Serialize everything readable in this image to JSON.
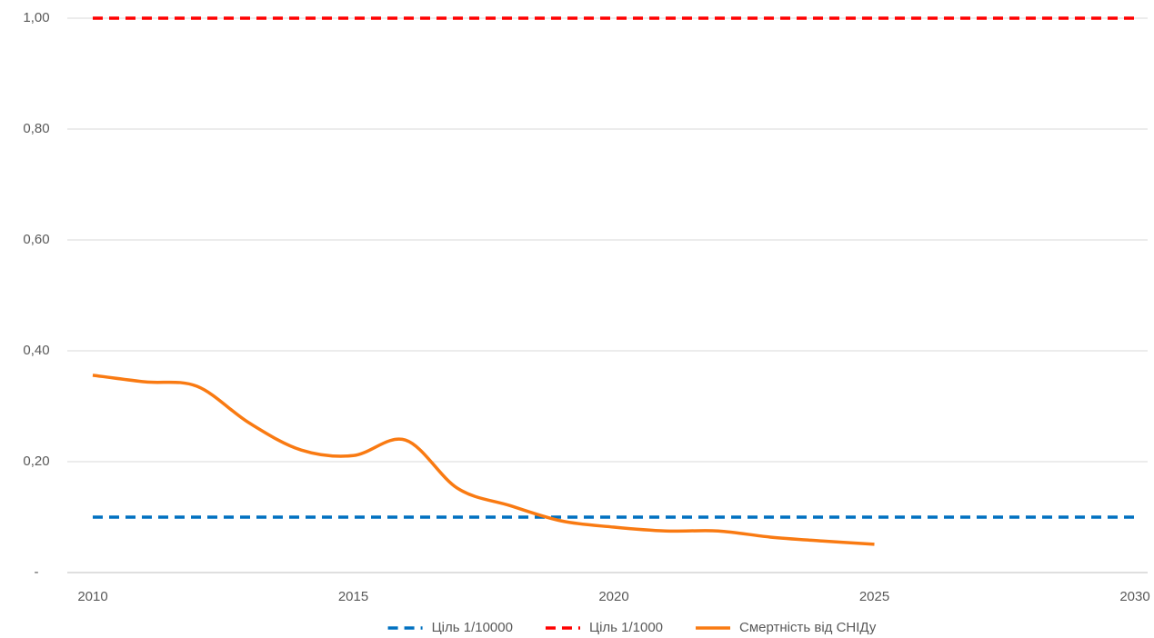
{
  "chart_data": {
    "type": "line",
    "xlim": [
      2010,
      2030
    ],
    "xticks": [
      2010,
      2015,
      2020,
      2025,
      2030
    ],
    "ylim": [
      0,
      1
    ],
    "yticks": [
      {
        "value": 0,
        "label": "-"
      },
      {
        "value": 0.2,
        "label": "0,20"
      },
      {
        "value": 0.4,
        "label": "0,40"
      },
      {
        "value": 0.6,
        "label": "0,60"
      },
      {
        "value": 0.8,
        "label": "0,80"
      },
      {
        "value": 1,
        "label": "1,00"
      }
    ],
    "grid": true,
    "legend": "bottom",
    "smooth": true,
    "series": [
      {
        "name": "Ціль 1/10000",
        "color": "#0070c0",
        "dashed": true,
        "x": [
          2010,
          2030
        ],
        "values": [
          0.1,
          0.1
        ]
      },
      {
        "name": "Ціль 1/1000",
        "color": "#ff0000",
        "dashed": true,
        "x": [
          2010,
          2030
        ],
        "values": [
          1,
          1
        ]
      },
      {
        "name": "Смертність від СНІДу",
        "color": "#f97a12",
        "dashed": false,
        "x": [
          2010,
          2011,
          2012,
          2013,
          2014,
          2015,
          2016,
          2017,
          2018,
          2019,
          2020,
          2021,
          2022,
          2023,
          2024,
          2025
        ],
        "values": [
          0.356,
          0.344,
          0.336,
          0.27,
          0.221,
          0.211,
          0.239,
          0.152,
          0.121,
          0.093,
          0.082,
          0.075,
          0.075,
          0.064,
          0.057,
          0.051
        ]
      }
    ]
  }
}
